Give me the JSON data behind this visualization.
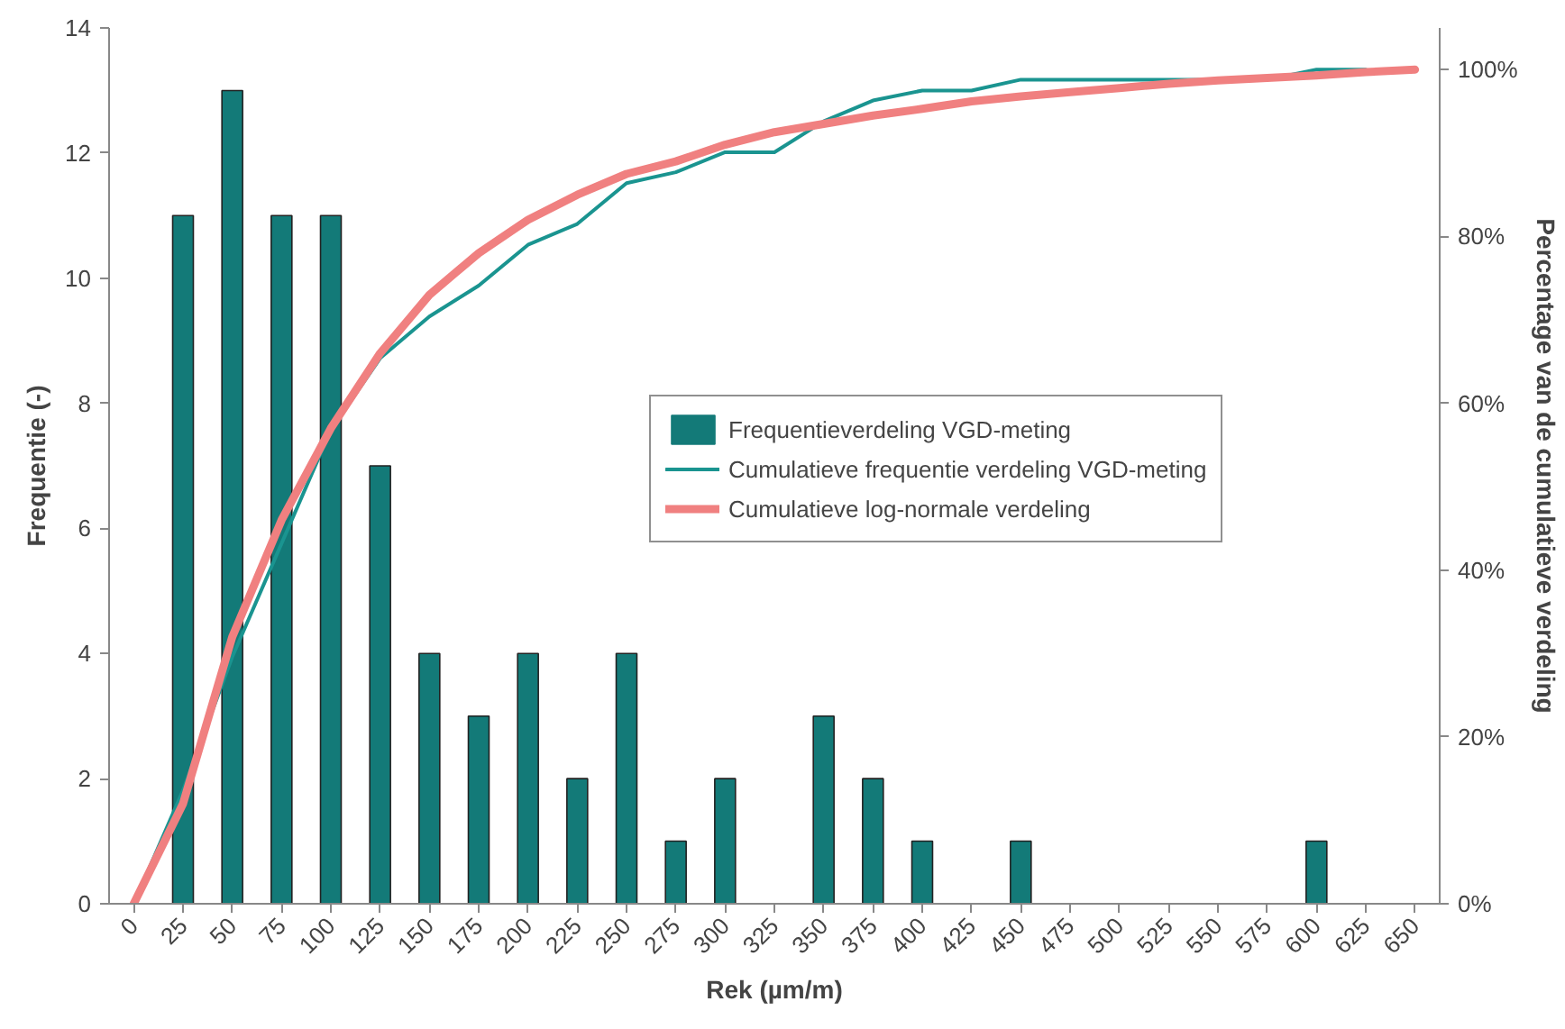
{
  "chart_data": {
    "type": "bar",
    "xlabel": "Rek (µm/m)",
    "ylabel": "Frequentie (-)",
    "y2label": "Percentage van de cumulatieve verdeling",
    "categories": [
      "0",
      "25",
      "50",
      "75",
      "100",
      "125",
      "150",
      "175",
      "200",
      "225",
      "250",
      "275",
      "300",
      "325",
      "350",
      "375",
      "400",
      "425",
      "450",
      "475",
      "500",
      "525",
      "550",
      "575",
      "600",
      "625",
      "650"
    ],
    "ylim": [
      0,
      14
    ],
    "yticks": [
      0,
      2,
      4,
      6,
      8,
      10,
      12,
      14
    ],
    "y2lim": [
      0,
      105
    ],
    "y2ticks": [
      {
        "value": 0,
        "label": "0%"
      },
      {
        "value": 20,
        "label": "20%"
      },
      {
        "value": 40,
        "label": "40%"
      },
      {
        "value": 60,
        "label": "60%"
      },
      {
        "value": 80,
        "label": "80%"
      },
      {
        "value": 100,
        "label": "100%"
      }
    ],
    "legend": "right",
    "grid": false,
    "series": [
      {
        "name": "Frequentieverdeling VGD-meting",
        "color": "#137a78",
        "values": [
          0,
          11,
          13,
          11,
          11,
          7,
          4,
          3,
          4,
          2,
          4,
          1,
          2,
          0,
          3,
          2,
          1,
          0,
          1,
          0,
          0,
          0,
          0,
          0,
          1,
          0,
          0
        ]
      },
      {
        "name": "Cumulatieve frequentie verdeling VGD-meting",
        "type": "line",
        "axis": "y2",
        "color": "#1a9490",
        "values": [
          0,
          13.6,
          29.6,
          43.2,
          56.8,
          65.4,
          70.4,
          74.1,
          79.0,
          81.5,
          86.4,
          87.7,
          90.1,
          90.1,
          93.8,
          96.3,
          97.5,
          97.5,
          98.8,
          98.8,
          98.8,
          98.8,
          98.8,
          98.8,
          100,
          100,
          null
        ]
      },
      {
        "name": "Cumulatieve log-normale verdeling",
        "type": "line",
        "axis": "y2",
        "color": "#f08080",
        "values": [
          0,
          12,
          32,
          46,
          57,
          66,
          73,
          78,
          82,
          85,
          87.5,
          89,
          91,
          92.5,
          93.5,
          94.5,
          95.3,
          96.2,
          96.8,
          97.3,
          97.8,
          98.3,
          98.7,
          99,
          99.3,
          99.7,
          100
        ]
      }
    ]
  }
}
